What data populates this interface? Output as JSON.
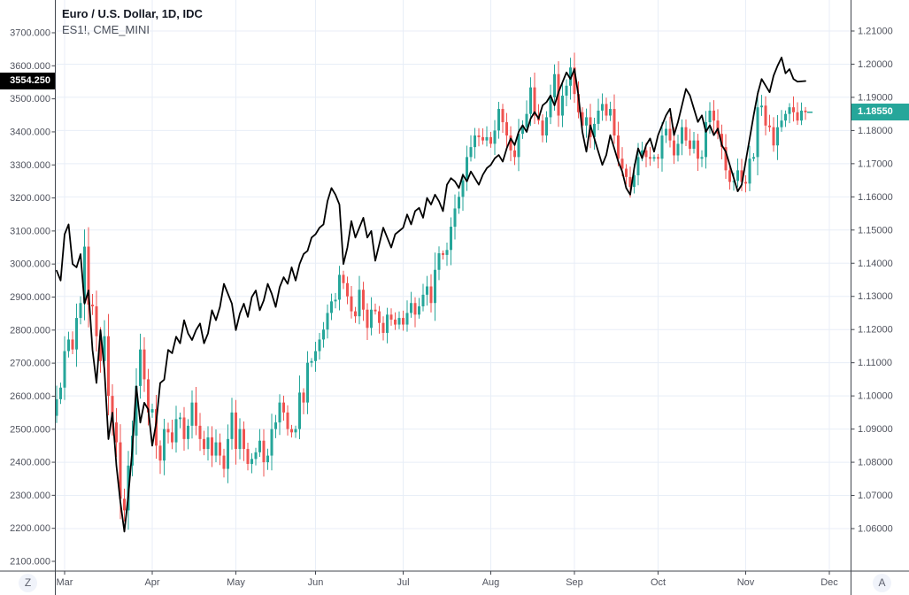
{
  "legend": {
    "symbol_title": "Euro / U.S. Dollar, 1D, IDC",
    "overlay_title": "ES1!, CME_MINI"
  },
  "corner_buttons": {
    "left_label": "Z",
    "right_label": "A"
  },
  "colors": {
    "background": "#ffffff",
    "up": "#26a69a",
    "down": "#ef5350",
    "line": "#000000",
    "grid": "#e8eef7",
    "axis_border": "#42464e",
    "axis_text": "#50535e",
    "badge_left_bg": "#000000",
    "badge_right_bg": "#26a69a",
    "badge_text": "#ffffff",
    "button_bg": "#f0f3fa",
    "button_text": "#5d616e"
  },
  "chart_data": {
    "type": "candlestick+line",
    "title": "Euro / U.S. Dollar, 1D, IDC with overlay ES1!, CME_MINI",
    "grid": true,
    "x_axis": {
      "labels": [
        "Mar",
        "Apr",
        "May",
        "Jun",
        "Jul",
        "Aug",
        "Sep",
        "Oct",
        "Nov",
        "Dec"
      ],
      "lead_days": 2,
      "days_per_month": [
        22,
        21,
        20,
        22,
        22,
        21,
        21,
        22,
        21
      ]
    },
    "left_axis": {
      "title": "ES1! price",
      "max": 3700,
      "min": 2100,
      "tick_step": 100,
      "ticks": [
        "3700.000",
        "3600.000",
        "3500.000",
        "3400.000",
        "3300.000",
        "3200.000",
        "3100.000",
        "3000.000",
        "2900.000",
        "2800.000",
        "2700.000",
        "2600.000",
        "2500.000",
        "2400.000",
        "2300.000",
        "2200.000",
        "2100.000"
      ],
      "last_price": 3554.25,
      "last_label": "3554.250"
    },
    "right_axis": {
      "title": "EUR/USD price",
      "max": 1.21,
      "min": 1.06,
      "tick_step": 0.01,
      "ticks": [
        "1.21000",
        "1.20000",
        "1.19000",
        "1.18000",
        "1.17000",
        "1.16000",
        "1.15000",
        "1.14000",
        "1.13000",
        "1.12000",
        "1.11000",
        "1.10000",
        "1.09000",
        "1.08000",
        "1.07000",
        "1.06000"
      ],
      "last_price": 1.1855,
      "last_label": "1.18550"
    },
    "series": [
      {
        "name": "Euro / U.S. Dollar",
        "symbol": "EURUSD",
        "timeframe": "1D",
        "exchange": "IDC",
        "type": "candlestick",
        "axis": "right",
        "up_color": "#26a69a",
        "down_color": "#ef5350",
        "first_open": 1.094,
        "last_price": 1.1855,
        "closes": [
          1.099,
          1.1025,
          1.1135,
          1.117,
          1.114,
          1.1235,
          1.128,
          1.145,
          1.1275,
          1.127,
          1.118,
          1.1105,
          1.118,
          1.1,
          1.092,
          1.086,
          1.069,
          1.0655,
          1.079,
          1.088,
          1.103,
          1.114,
          1.105,
          1.095,
          1.096,
          1.085,
          1.0805,
          1.09,
          1.089,
          1.086,
          1.093,
          1.0935,
          1.087,
          1.091,
          1.098,
          1.091,
          1.087,
          1.084,
          1.0875,
          1.082,
          1.086,
          1.082,
          1.078,
          1.087,
          1.095,
          1.084,
          1.09,
          1.084,
          1.0795,
          1.081,
          1.083,
          1.0865,
          1.08,
          1.082,
          1.09,
          1.092,
          1.098,
          1.095,
          1.09,
          1.089,
          1.09,
          1.101,
          1.098,
          1.11,
          1.1105,
          1.1135,
          1.117,
          1.12,
          1.125,
          1.1285,
          1.129,
          1.1365,
          1.134,
          1.13,
          1.1255,
          1.124,
          1.132,
          1.126,
          1.1205,
          1.126,
          1.1255,
          1.122,
          1.119,
          1.1245,
          1.123,
          1.1215,
          1.1235,
          1.1215,
          1.125,
          1.128,
          1.1245,
          1.127,
          1.1305,
          1.133,
          1.128,
          1.138,
          1.143,
          1.1425,
          1.144,
          1.151,
          1.1565,
          1.16,
          1.165,
          1.172,
          1.175,
          1.1785,
          1.178,
          1.177,
          1.178,
          1.176,
          1.18,
          1.1865,
          1.1825,
          1.1785,
          1.174,
          1.172,
          1.179,
          1.181,
          1.185,
          1.193,
          1.1845,
          1.183,
          1.1785,
          1.184,
          1.19,
          1.197,
          1.1845,
          1.1905,
          1.1935,
          1.199,
          1.191,
          1.1855,
          1.1815,
          1.184,
          1.178,
          1.182,
          1.186,
          1.188,
          1.1845,
          1.1865,
          1.1785,
          1.1715,
          1.1685,
          1.166,
          1.163,
          1.1665,
          1.172,
          1.174,
          1.172,
          1.1715,
          1.172,
          1.1715,
          1.1785,
          1.1805,
          1.177,
          1.1725,
          1.176,
          1.181,
          1.177,
          1.1745,
          1.177,
          1.1715,
          1.172,
          1.1825,
          1.186,
          1.183,
          1.179,
          1.175,
          1.168,
          1.1645,
          1.1648,
          1.168,
          1.1645,
          1.164,
          1.1715,
          1.172,
          1.187,
          1.1875,
          1.1815,
          1.181,
          1.1755,
          1.181,
          1.183,
          1.185,
          1.187,
          1.1855,
          1.183,
          1.186,
          1.1855
        ]
      },
      {
        "name": "ES1!",
        "symbol": "ES1!",
        "exchange": "CME_MINI",
        "type": "line",
        "axis": "left",
        "color": "#000000",
        "last_price": 3554.25,
        "values": [
          2980,
          2950,
          3090,
          3120,
          3000,
          2990,
          3030,
          2880,
          2920,
          2740,
          2640,
          2800,
          2680,
          2470,
          2550,
          2390,
          2280,
          2190,
          2300,
          2440,
          2630,
          2520,
          2580,
          2560,
          2450,
          2520,
          2640,
          2650,
          2740,
          2730,
          2780,
          2760,
          2830,
          2790,
          2770,
          2800,
          2820,
          2760,
          2790,
          2860,
          2830,
          2870,
          2940,
          2910,
          2880,
          2800,
          2850,
          2880,
          2840,
          2900,
          2920,
          2860,
          2890,
          2940,
          2910,
          2870,
          2930,
          2960,
          2940,
          2990,
          2950,
          3000,
          3030,
          3040,
          3080,
          3090,
          3110,
          3120,
          3190,
          3230,
          3210,
          3180,
          3000,
          3050,
          3130,
          3080,
          3110,
          3140,
          3080,
          3100,
          3010,
          3060,
          3110,
          3080,
          3050,
          3090,
          3100,
          3110,
          3150,
          3120,
          3160,
          3170,
          3140,
          3200,
          3180,
          3210,
          3190,
          3160,
          3240,
          3260,
          3250,
          3230,
          3270,
          3250,
          3280,
          3260,
          3240,
          3270,
          3290,
          3300,
          3320,
          3330,
          3310,
          3350,
          3380,
          3360,
          3400,
          3420,
          3400,
          3440,
          3460,
          3440,
          3480,
          3490,
          3510,
          3480,
          3520,
          3550,
          3580,
          3560,
          3590,
          3510,
          3400,
          3340,
          3420,
          3380,
          3340,
          3300,
          3330,
          3390,
          3350,
          3310,
          3280,
          3230,
          3210,
          3290,
          3350,
          3320,
          3360,
          3380,
          3340,
          3390,
          3420,
          3450,
          3470,
          3390,
          3430,
          3480,
          3530,
          3510,
          3470,
          3430,
          3450,
          3400,
          3420,
          3390,
          3410,
          3360,
          3340,
          3300,
          3260,
          3220,
          3240,
          3310,
          3380,
          3450,
          3515,
          3560,
          3540,
          3520,
          3570,
          3600,
          3625,
          3577,
          3590,
          3560,
          3552,
          3553,
          3554
        ]
      }
    ]
  }
}
